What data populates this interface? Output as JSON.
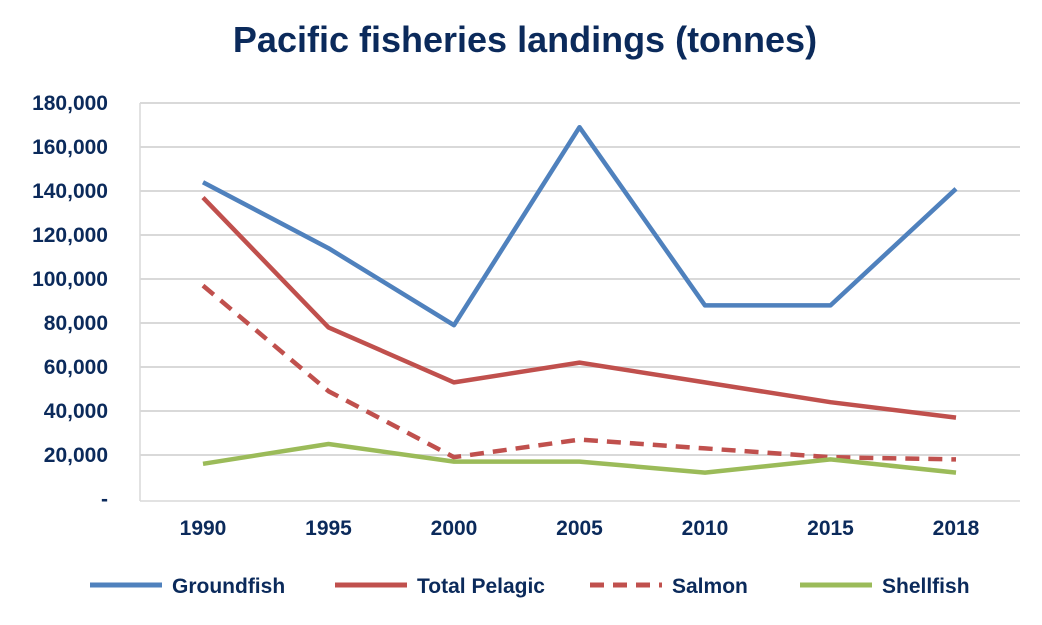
{
  "chart_data": {
    "type": "line",
    "title": "Pacific fisheries landings (tonnes)",
    "xlabel": "",
    "ylabel": "",
    "categories": [
      "1990",
      "1995",
      "2000",
      "2005",
      "2010",
      "2015",
      "2018"
    ],
    "ylim": [
      0,
      180000
    ],
    "yticks": [
      0,
      20000,
      40000,
      60000,
      80000,
      100000,
      120000,
      140000,
      160000,
      180000
    ],
    "ytick_labels": [
      "-",
      "20,000",
      "40,000",
      "60,000",
      "80,000",
      "100,000",
      "120,000",
      "140,000",
      "160,000",
      "180,000"
    ],
    "grid": true,
    "legend_position": "bottom",
    "series": [
      {
        "name": "Groundfish",
        "color": "#4f81bd",
        "dash": "solid",
        "values": [
          144000,
          114000,
          79000,
          169000,
          88000,
          88000,
          141000
        ]
      },
      {
        "name": "Total Pelagic",
        "color": "#c0504d",
        "dash": "solid",
        "values": [
          137000,
          78000,
          53000,
          62000,
          53000,
          44000,
          37000
        ]
      },
      {
        "name": "Salmon",
        "color": "#c0504d",
        "dash": "dashed",
        "values": [
          97000,
          49000,
          19000,
          27000,
          23000,
          19000,
          18000
        ]
      },
      {
        "name": "Shellfish",
        "color": "#9bbb59",
        "dash": "solid",
        "values": [
          16000,
          25000,
          17000,
          17000,
          12000,
          18000,
          12000
        ]
      }
    ]
  }
}
